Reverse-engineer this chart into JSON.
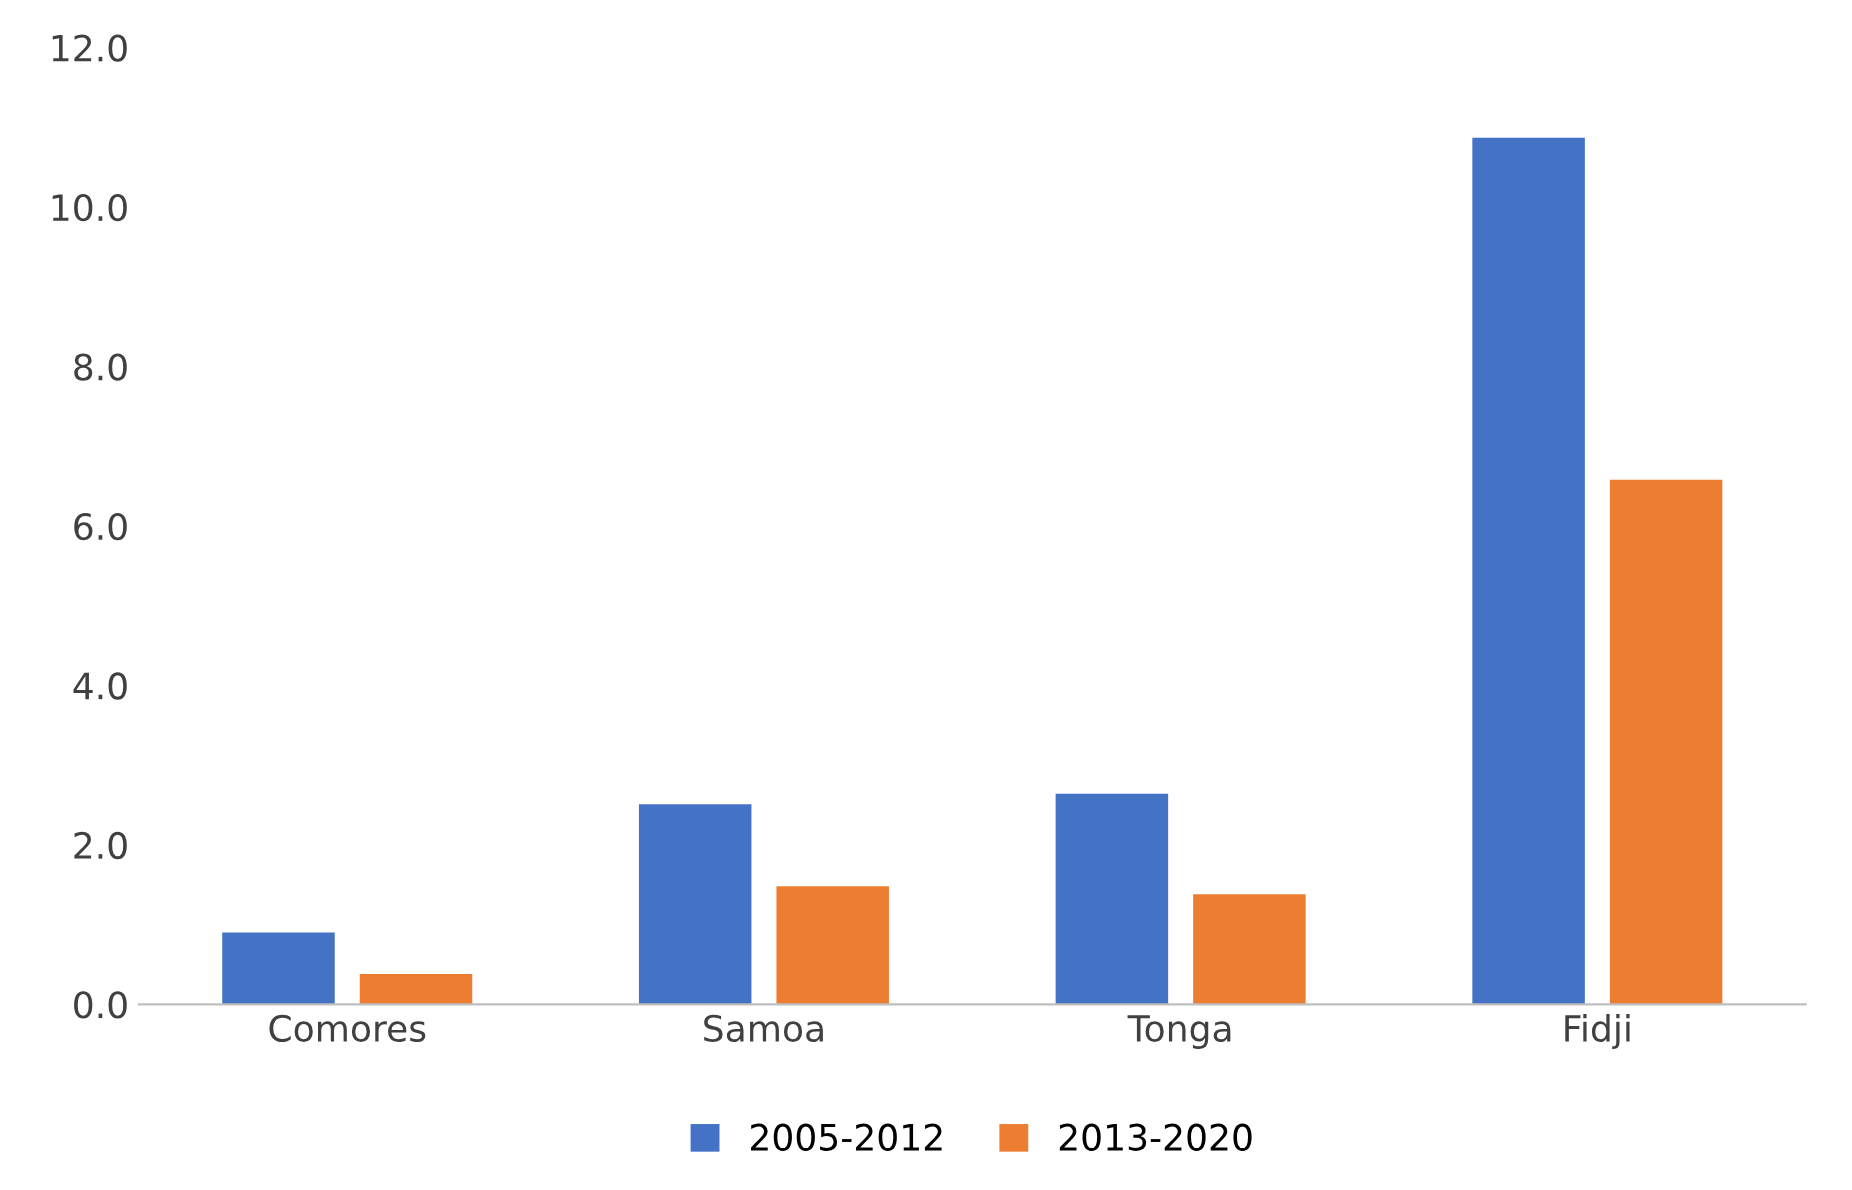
{
  "chart_data": {
    "type": "bar",
    "categories": [
      "Comores",
      "Samoa",
      "Tonga",
      "Fidji"
    ],
    "series": [
      {
        "name": "2005-2012",
        "color": "#4472c4",
        "values": [
          0.9,
          2.51,
          2.64,
          10.87
        ]
      },
      {
        "name": "2013-2020",
        "color": "#ed7d31",
        "values": [
          0.38,
          1.48,
          1.38,
          6.58
        ]
      }
    ],
    "ylim": [
      0,
      12
    ],
    "yticks": [
      {
        "value": 0,
        "label": "0.0"
      },
      {
        "value": 2,
        "label": "2.0"
      },
      {
        "value": 4,
        "label": "4.0"
      },
      {
        "value": 6,
        "label": "6.0"
      },
      {
        "value": 8,
        "label": "8.0"
      },
      {
        "value": 10,
        "label": "10.0"
      },
      {
        "value": 12,
        "label": "12.0"
      }
    ],
    "grid": false,
    "legend": "bottom"
  }
}
